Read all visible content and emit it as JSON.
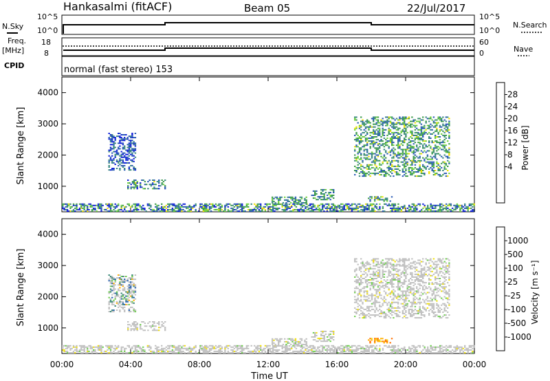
{
  "header": {
    "station": "Hankasalmi (fitACF)",
    "beam": "Beam 05",
    "date": "22/Jul/2017"
  },
  "side_labels": {
    "nsky": "N.Sky",
    "nsearch": "N.Search",
    "freq": "Freq.",
    "freq_unit": "[MHz]",
    "nave": "Nave",
    "cpid": "CPID"
  },
  "cpid_text": "normal (fast stereo) 153",
  "x_axis": {
    "label": "Time UT",
    "ticks": [
      "00:00",
      "04:00",
      "08:00",
      "12:00",
      "16:00",
      "20:00",
      "00:00"
    ],
    "range_hours": [
      0,
      24
    ]
  },
  "noise_panel": {
    "left_ticks": [
      "10^5",
      "10^0"
    ],
    "right_ticks": [
      "10^5",
      "10^0"
    ]
  },
  "freq_panel": {
    "left_ticks": [
      "18",
      "8"
    ],
    "right_ticks": [
      "60",
      "0"
    ]
  },
  "colorbars": {
    "power": {
      "label": "Power [dB]",
      "ticks": [
        "28",
        "24",
        "20",
        "16",
        "12",
        "8",
        "4"
      ],
      "colors": [
        "#e00000",
        "#ff7000",
        "#ffb000",
        "#f0e000",
        "#6ed23a",
        "#3a9a4a",
        "#3c8a80",
        "#285ab4",
        "#1020d8",
        "#0000ff"
      ]
    },
    "velocity": {
      "label": "Velocity [m s⁻¹]",
      "ticks": [
        "1000",
        "500",
        "100",
        "25",
        "-25",
        "-100",
        "-500",
        "-1000"
      ],
      "colors": [
        "#1a3cc8",
        "#2c64b0",
        "#3c8a78",
        "#70d050",
        "#c0c0c0",
        "#f0e010",
        "#ffb000",
        "#ff7000",
        "#e00000"
      ]
    }
  },
  "chart_data": [
    {
      "type": "heatmap",
      "title": "",
      "xlabel": "",
      "ylabel": "Slant Range [km]",
      "xlim": [
        0,
        24
      ],
      "ylim": [
        180,
        4500
      ],
      "yticks": [
        1000,
        2000,
        3000,
        4000
      ],
      "colorbar_label": "Power [dB]",
      "regions": [
        {
          "t0": 0.0,
          "t1": 24.0,
          "r0": 180,
          "r1": 420,
          "level": "mixed"
        },
        {
          "t0": 2.7,
          "t1": 4.3,
          "r0": 1500,
          "r1": 2700,
          "level": "low"
        },
        {
          "t0": 3.8,
          "t1": 6.0,
          "r0": 900,
          "r1": 1200,
          "level": "mixed"
        },
        {
          "t0": 12.2,
          "t1": 14.2,
          "r0": 400,
          "r1": 650,
          "level": "mid"
        },
        {
          "t0": 14.5,
          "t1": 15.8,
          "r0": 550,
          "r1": 900,
          "level": "mid"
        },
        {
          "t0": 17.8,
          "t1": 19.2,
          "r0": 500,
          "r1": 650,
          "level": "high"
        },
        {
          "t0": 17.0,
          "t1": 22.5,
          "r0": 1300,
          "r1": 3200,
          "level": "high"
        }
      ]
    },
    {
      "type": "heatmap",
      "title": "",
      "xlabel": "Time UT",
      "ylabel": "Slant Range [km]",
      "xlim": [
        0,
        24
      ],
      "ylim": [
        180,
        4500
      ],
      "yticks": [
        1000,
        2000,
        3000,
        4000
      ],
      "colorbar_label": "Velocity [m s⁻¹]",
      "regions": [
        {
          "t0": 0.0,
          "t1": 24.0,
          "r0": 180,
          "r1": 420,
          "level": "ground"
        },
        {
          "t0": 2.7,
          "t1": 4.3,
          "r0": 1500,
          "r1": 2700,
          "level": "mixed"
        },
        {
          "t0": 3.8,
          "t1": 6.0,
          "r0": 900,
          "r1": 1200,
          "level": "ground"
        },
        {
          "t0": 12.2,
          "t1": 14.2,
          "r0": 400,
          "r1": 650,
          "level": "ground"
        },
        {
          "t0": 14.5,
          "t1": 15.8,
          "r0": 550,
          "r1": 900,
          "level": "ground"
        },
        {
          "t0": 17.8,
          "t1": 19.2,
          "r0": 500,
          "r1": 650,
          "level": "negative"
        },
        {
          "t0": 17.0,
          "t1": 22.5,
          "r0": 1300,
          "r1": 3200,
          "level": "ground"
        }
      ]
    }
  ]
}
